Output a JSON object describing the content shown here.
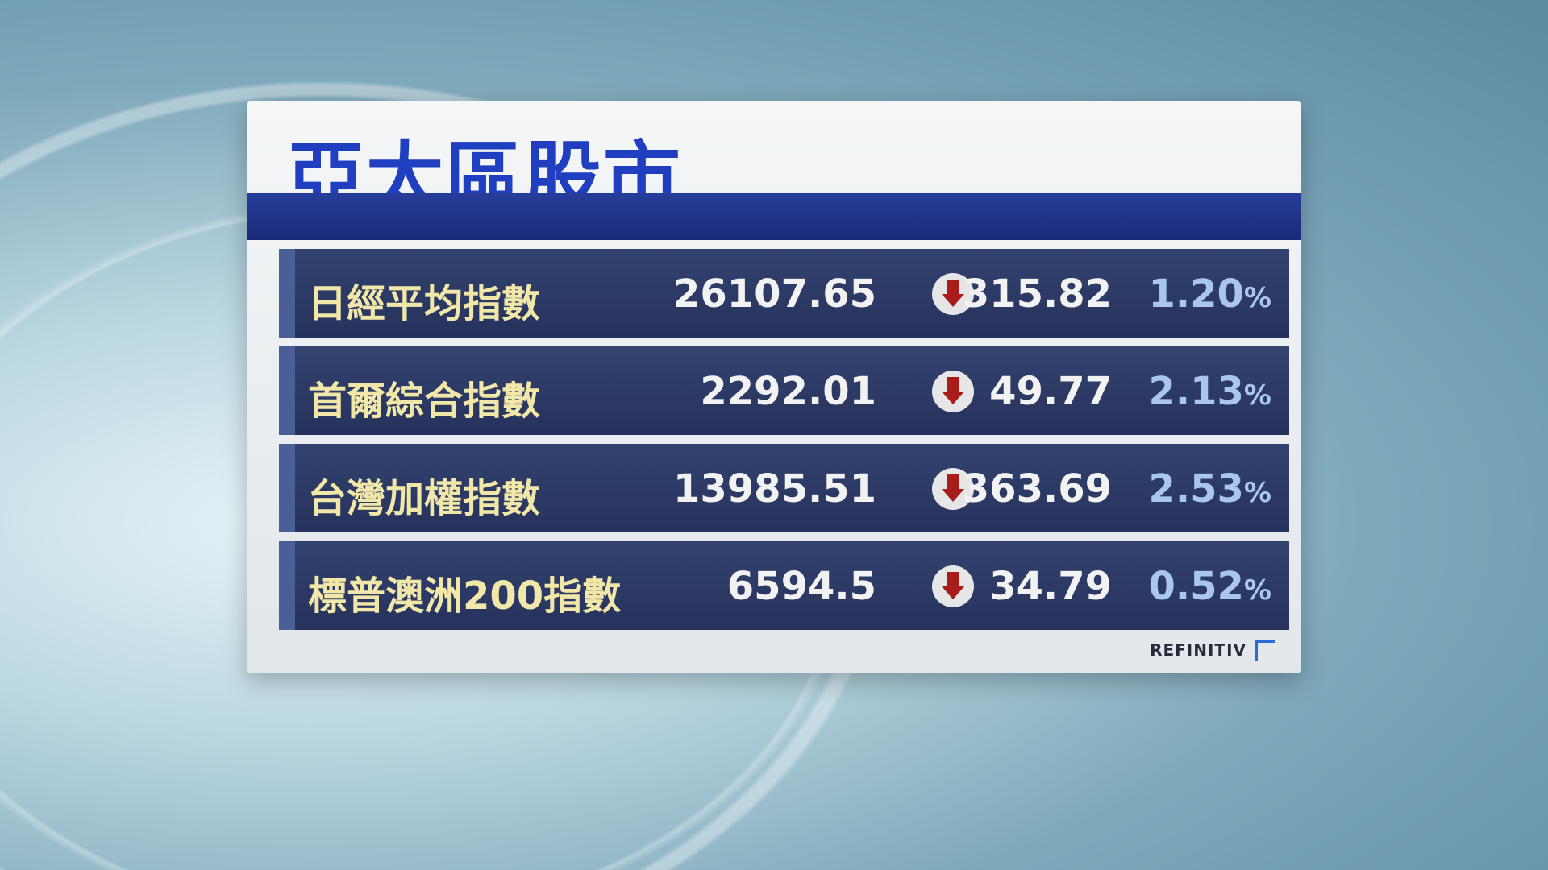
{
  "title": "亞太區股市",
  "rows": [
    {
      "name": "日經平均指數",
      "value": "26107.65",
      "direction": "down",
      "change": "315.82",
      "percent": "1.20",
      "pct_sign": "%"
    },
    {
      "name": "首爾綜合指數",
      "value": "2292.01",
      "direction": "down",
      "change": "49.77",
      "percent": "2.13",
      "pct_sign": "%"
    },
    {
      "name": "台灣加權指數",
      "value": "13985.51",
      "direction": "down",
      "change": "363.69",
      "percent": "2.53",
      "pct_sign": "%"
    },
    {
      "name": "標普澳洲200指數",
      "value": "6594.5",
      "direction": "down",
      "change": "34.79",
      "percent": "0.52",
      "pct_sign": "%"
    }
  ],
  "source": "REFINITIV",
  "colors": {
    "title": "#1f3fc0",
    "row_bg": "#2b3a66",
    "name": "#f1e7a8",
    "percent": "#a9c7ec",
    "down_arrow": "#a81c1c"
  }
}
